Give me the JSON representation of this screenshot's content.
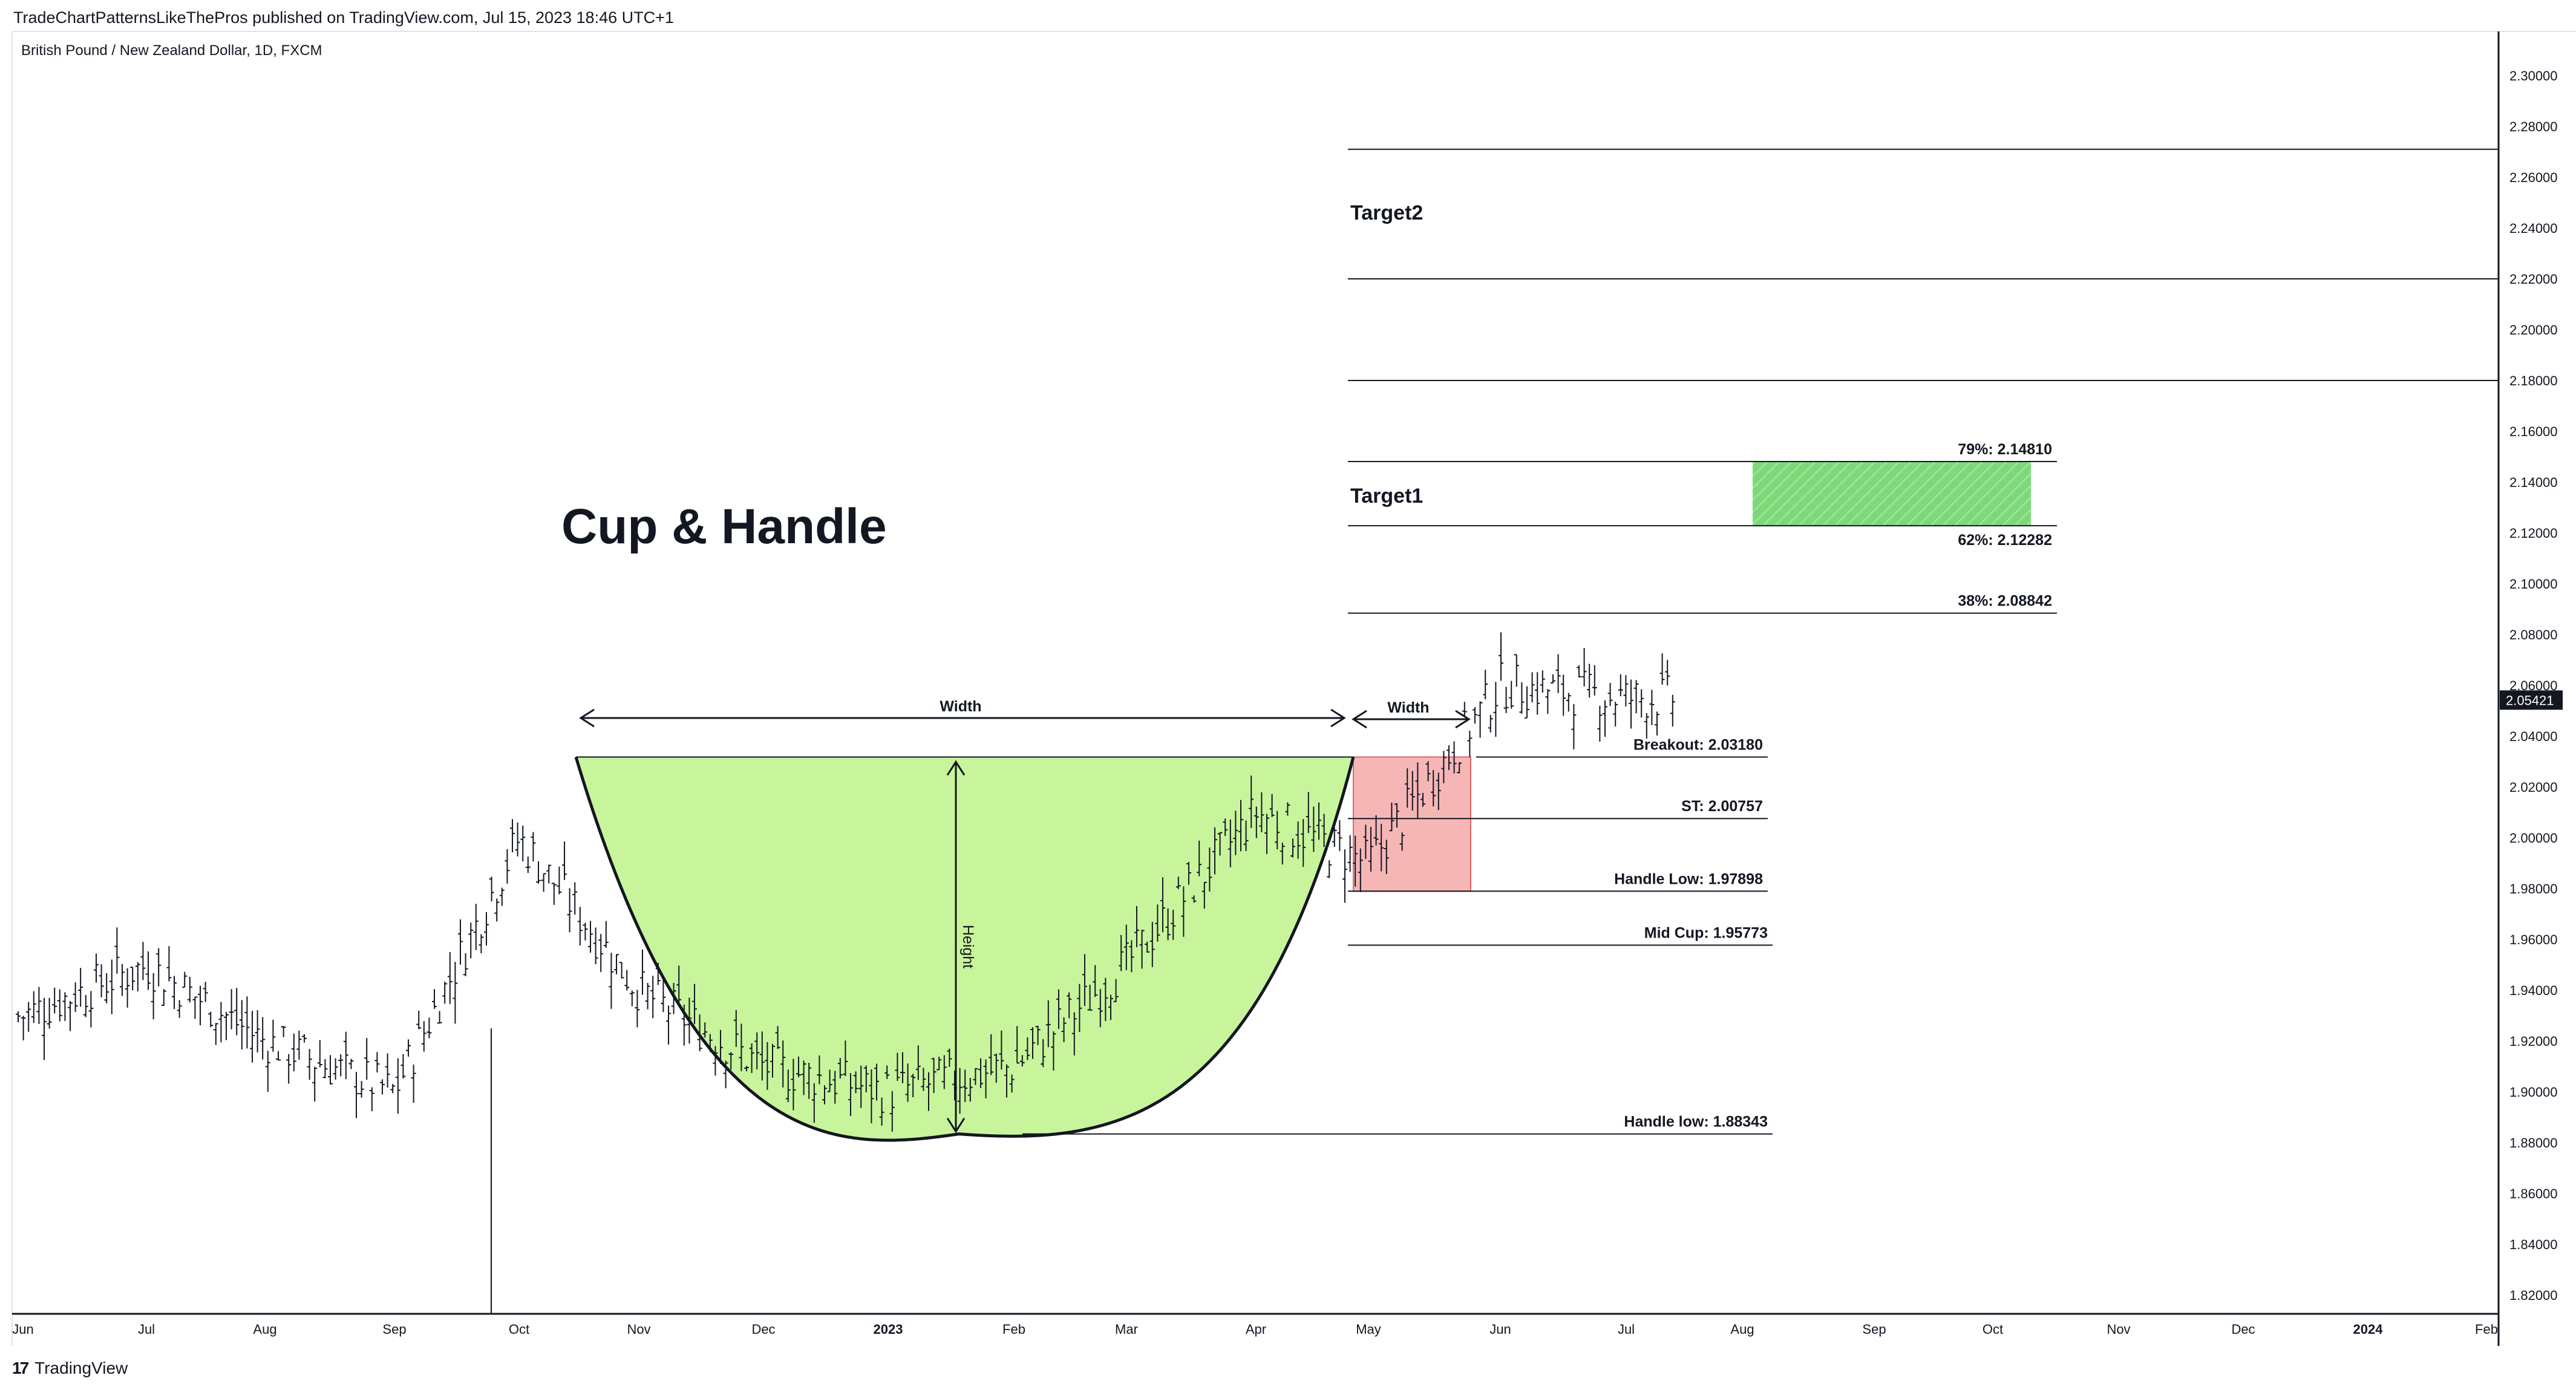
{
  "header": {
    "published_line": "TradeChartPatternsLikeThePros published on TradingView.com, Jul 15, 2023 18:46 UTC+1",
    "symbol_line": "British Pound / New Zealand Dollar, 1D, FXCM"
  },
  "footer": {
    "brand": "TradingView"
  },
  "colors": {
    "cup_fill": "#c8f59b",
    "handle_fill": "#f6b6b6",
    "target_zone": "#7ed87a",
    "line": "#131722",
    "price_tag": "#131722"
  },
  "chart_data": {
    "type": "ohlc-bars",
    "title": "Cup & Handle",
    "x_ticks": [
      "Jun",
      "Jul",
      "Aug",
      "Sep",
      "Oct",
      "Nov",
      "Dec",
      "2023",
      "Feb",
      "Mar",
      "Apr",
      "May",
      "Jun",
      "Jul",
      "Aug",
      "Sep",
      "Oct",
      "Nov",
      "Dec",
      "2024",
      "Feb"
    ],
    "y_ticks": [
      "2.30000",
      "2.28000",
      "2.26000",
      "2.24000",
      "2.22000",
      "2.20000",
      "2.18000",
      "2.16000",
      "2.14000",
      "2.12000",
      "2.10000",
      "2.08000",
      "2.06000",
      "2.04000",
      "2.02000",
      "2.00000",
      "1.98000",
      "1.96000",
      "1.94000",
      "1.92000",
      "1.90000",
      "1.88000",
      "1.86000",
      "1.84000",
      "1.82000"
    ],
    "ylim": [
      1.81,
      2.31
    ],
    "last_price": "2.05421",
    "price_series_monthly_approx": [
      {
        "month": "Jun 2022",
        "close": 1.93
      },
      {
        "month": "Jul 2022",
        "close": 1.95
      },
      {
        "month": "Aug 2022",
        "close": 1.92
      },
      {
        "month": "Sep 2022",
        "close": 1.9
      },
      {
        "month": "Oct 2022",
        "close": 2.0
      },
      {
        "month": "Nov 2022",
        "close": 1.94
      },
      {
        "month": "Dec 2022",
        "close": 1.91
      },
      {
        "month": "Jan 2023",
        "close": 1.9
      },
      {
        "month": "Feb 2023",
        "close": 1.91
      },
      {
        "month": "Mar 2023",
        "close": 1.95
      },
      {
        "month": "Apr 2023",
        "close": 2.01
      },
      {
        "month": "May 2023",
        "close": 1.99
      },
      {
        "month": "Jun 2023",
        "close": 2.06
      },
      {
        "month": "Jul 2023",
        "close": 2.055
      }
    ],
    "levels": [
      {
        "label": "79%: 2.14810",
        "value": 2.1481
      },
      {
        "label": "62%: 2.12282",
        "value": 2.12282
      },
      {
        "label": "38%: 2.08842",
        "value": 2.08842
      },
      {
        "label": "Breakout: 2.03180",
        "value": 2.0318
      },
      {
        "label": "ST: 2.00757",
        "value": 2.00757
      },
      {
        "label": "Handle Low: 1.97898",
        "value": 1.97898
      },
      {
        "label": "Mid Cup: 1.95773",
        "value": 1.95773
      },
      {
        "label": "Handle low: 1.88343",
        "value": 1.88343
      }
    ],
    "unlabeled_levels": [
      2.271,
      2.22,
      2.18
    ],
    "annotations": {
      "title": "Cup & Handle",
      "width_label_cup": "Width",
      "width_label_handle": "Width",
      "height_label": "Height",
      "target1": "Target1",
      "target2": "Target2"
    },
    "legend": "none",
    "grid": false
  }
}
